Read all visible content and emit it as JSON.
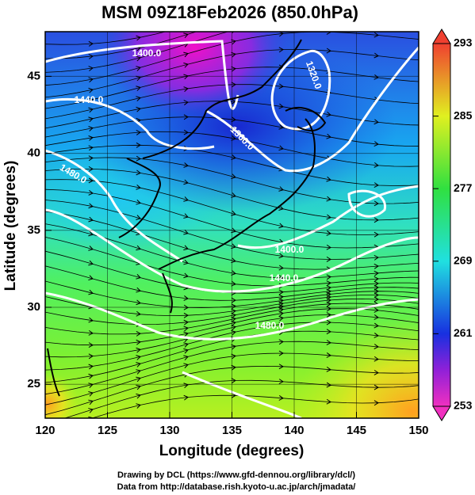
{
  "map": {
    "title": "MSM 09Z18Feb2026 (850.0hPa)",
    "xlabel": "Longitude (degrees)",
    "ylabel": "Latitude  (degrees)",
    "xlim": [
      120,
      150
    ],
    "ylim": [
      22.8,
      47.9
    ],
    "xticks": [
      120,
      125,
      130,
      135,
      140,
      145,
      150
    ],
    "yticks": [
      25,
      30,
      35,
      40,
      45
    ],
    "colorbar": {
      "lim": [
        253,
        293
      ],
      "ticks": [
        253,
        261,
        269,
        277,
        285,
        293
      ]
    },
    "contour_labels": [
      "1400.0",
      "1440.0",
      "1320.0",
      "1360.0",
      "1480.0",
      "1400.0",
      "1440.0",
      "1480.0"
    ],
    "credits": [
      "Drawing by DCL (https://www.gfd-dennou.org/library/dcl/)",
      "Data from http://database.rish.kyoto-u.ac.jp/arch/jmadata/"
    ]
  }
}
